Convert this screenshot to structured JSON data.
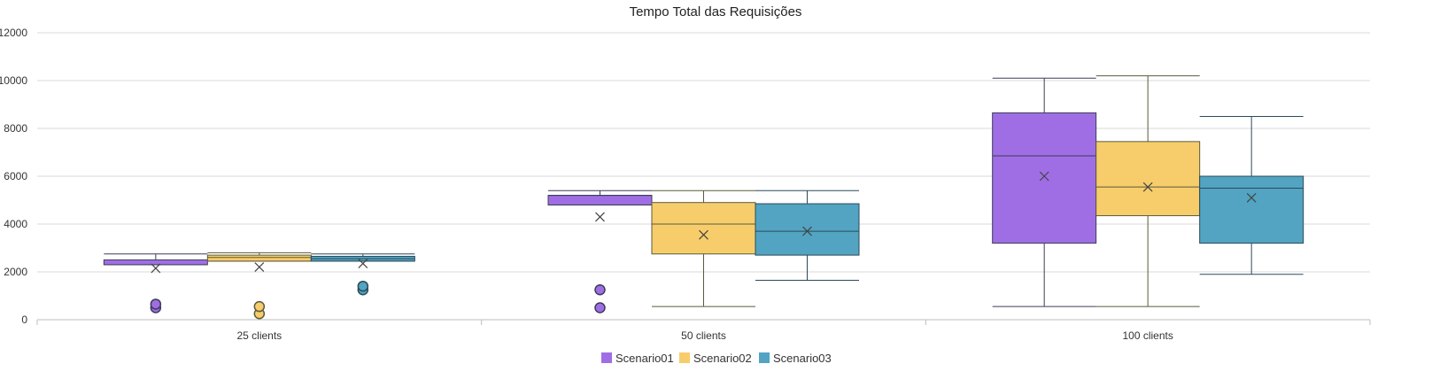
{
  "chart_data": {
    "type": "boxplot",
    "title": "Tempo Total das Requisições",
    "xlabel": "",
    "ylabel": "",
    "ylim": [
      0,
      12000
    ],
    "yticks": [
      0,
      2000,
      4000,
      6000,
      8000,
      10000,
      12000
    ],
    "grid": true,
    "legend_position": "bottom-center",
    "categories": [
      "25 clients",
      "50 clients",
      "100 clients"
    ],
    "series": [
      {
        "name": "Scenario01",
        "color": "#a06ee4",
        "edge_color": "#3c3c5a",
        "boxes": [
          {
            "min": 2300,
            "q1": 2300,
            "median": 2500,
            "q3": 2500,
            "max": 2750,
            "mean": 2150,
            "outliers": [
              500,
              650
            ]
          },
          {
            "min": 4800,
            "q1": 4800,
            "median": 5200,
            "q3": 5200,
            "max": 5400,
            "mean": 4300,
            "outliers": [
              500,
              1250
            ]
          },
          {
            "min": 550,
            "q1": 3200,
            "median": 6850,
            "q3": 8650,
            "max": 10100,
            "mean": 6000,
            "outliers": []
          }
        ]
      },
      {
        "name": "Scenario02",
        "color": "#f7cd6b",
        "edge_color": "#5a5a3c",
        "boxes": [
          {
            "min": 2450,
            "q1": 2450,
            "median": 2600,
            "q3": 2700,
            "max": 2800,
            "mean": 2200,
            "outliers": [
              250,
              550
            ]
          },
          {
            "min": 550,
            "q1": 2750,
            "median": 4000,
            "q3": 4900,
            "max": 5400,
            "mean": 3550,
            "outliers": []
          },
          {
            "min": 550,
            "q1": 4350,
            "median": 5550,
            "q3": 7450,
            "max": 10200,
            "mean": 5550,
            "outliers": []
          }
        ]
      },
      {
        "name": "Scenario03",
        "color": "#52a4c2",
        "edge_color": "#2b4a5a",
        "boxes": [
          {
            "min": 2450,
            "q1": 2450,
            "median": 2550,
            "q3": 2650,
            "max": 2750,
            "mean": 2350,
            "outliers": [
              1250,
              1400
            ]
          },
          {
            "min": 1650,
            "q1": 2700,
            "median": 3700,
            "q3": 4850,
            "max": 5400,
            "mean": 3700,
            "outliers": []
          },
          {
            "min": 1900,
            "q1": 3200,
            "median": 5500,
            "q3": 6000,
            "max": 8500,
            "mean": 5100,
            "outliers": []
          }
        ]
      }
    ]
  }
}
